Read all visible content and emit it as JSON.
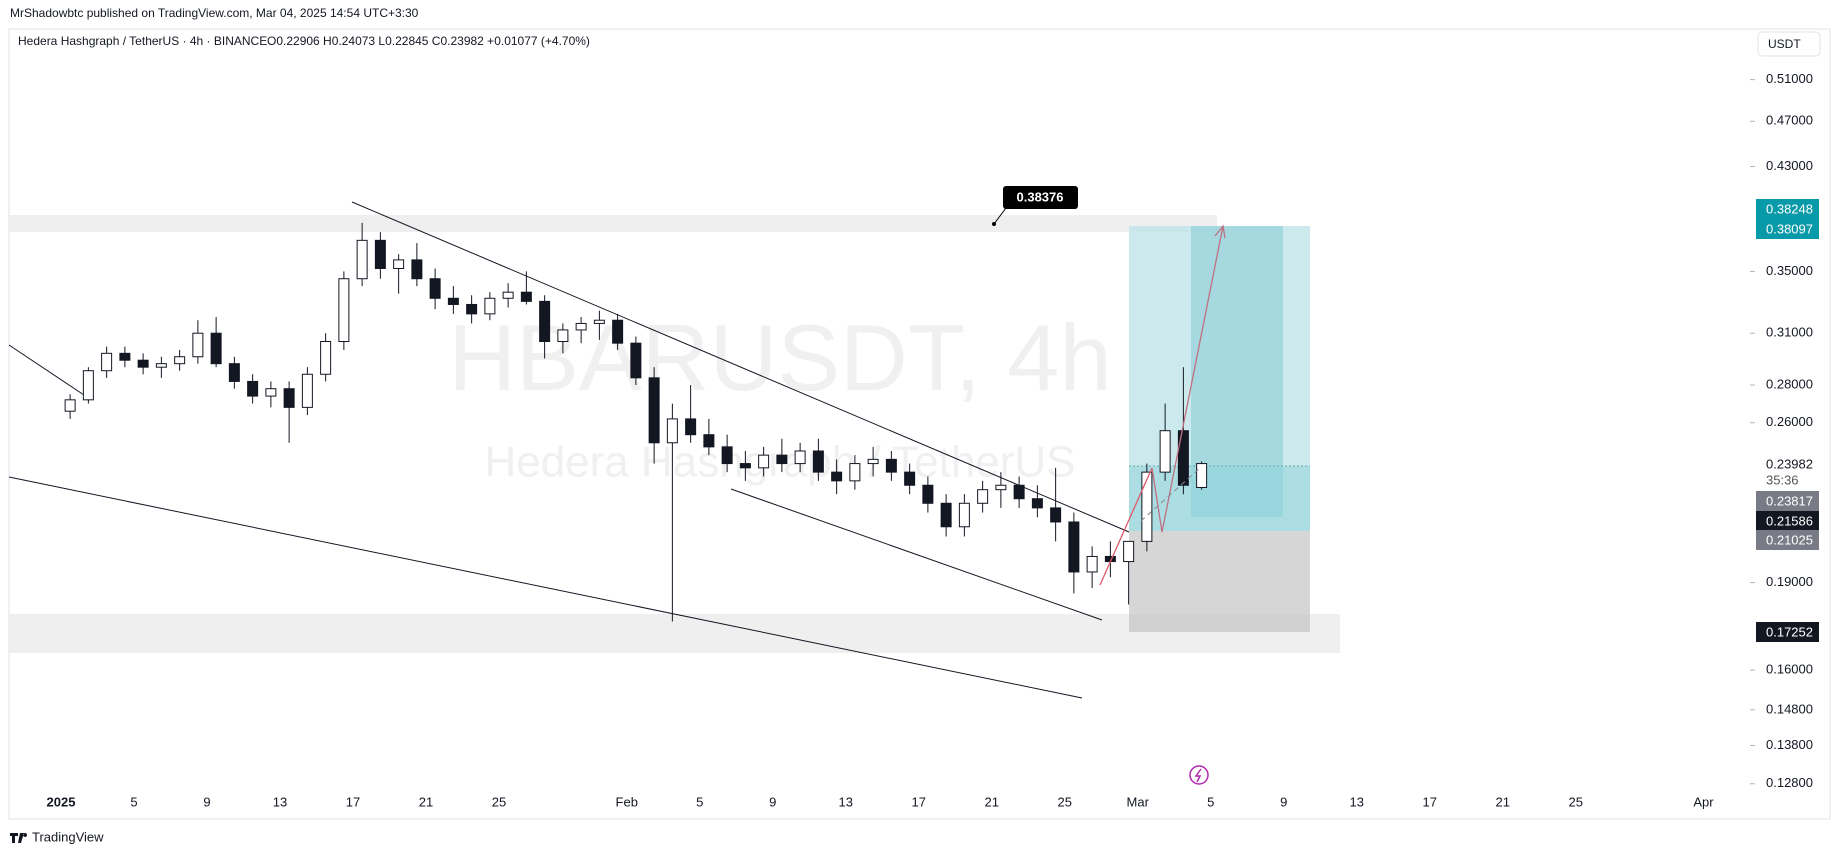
{
  "header": {
    "publisher": "MrShadowbtc published on TradingView.com, Mar 04, 2025 14:54 UTC+3:30",
    "symbol": "Hedera Hashgraph / TetherUS · 4h · BINANCE",
    "ohlc": "O0.22906 H0.24073 L0.22845 C0.23982 +0.01077 (+4.70%)"
  },
  "watermark": {
    "symbol": "HBARUSDT, 4h",
    "name": "Hedera Hashgraph / TetherUS"
  },
  "currency": "USDT",
  "footer": "TradingView",
  "callout": 0.38376,
  "chart_data": {
    "type": "candlestick",
    "log_scale": true,
    "ylim": [
      0.1257,
      0.5633
    ],
    "yticks": [
      {
        "value": 0.51,
        "label": "0.51000"
      },
      {
        "value": 0.47,
        "label": "0.47000"
      },
      {
        "value": 0.43,
        "label": "0.43000"
      },
      {
        "value": 0.35,
        "label": "0.35000"
      },
      {
        "value": 0.31,
        "label": "0.31000"
      },
      {
        "value": 0.28,
        "label": "0.28000"
      },
      {
        "value": 0.26,
        "label": "0.26000"
      },
      {
        "value": 0.19,
        "label": "0.19000"
      },
      {
        "value": 0.16,
        "label": "0.16000"
      },
      {
        "value": 0.148,
        "label": "0.14800"
      },
      {
        "value": 0.138,
        "label": "0.13800"
      },
      {
        "value": 0.128,
        "label": "0.12800"
      }
    ],
    "xticks": [
      "2025",
      "5",
      "9",
      "13",
      "17",
      "21",
      "25",
      "Feb",
      "5",
      "9",
      "13",
      "17",
      "21",
      "25",
      "Mar",
      "5",
      "9",
      "13",
      "17",
      "21",
      "25",
      "Apr"
    ],
    "price_labels": [
      0.38248,
      0.38097,
      0.23982,
      0.23817,
      0.21586,
      0.21025,
      0.17252
    ],
    "countdown": "35:36",
    "candles": [
      [
        0.266,
        0.275,
        0.262,
        0.272
      ],
      [
        0.272,
        0.29,
        0.27,
        0.288
      ],
      [
        0.288,
        0.302,
        0.284,
        0.298
      ],
      [
        0.298,
        0.302,
        0.29,
        0.294
      ],
      [
        0.294,
        0.298,
        0.286,
        0.29
      ],
      [
        0.29,
        0.296,
        0.284,
        0.292
      ],
      [
        0.292,
        0.3,
        0.288,
        0.296
      ],
      [
        0.296,
        0.318,
        0.292,
        0.31
      ],
      [
        0.31,
        0.32,
        0.29,
        0.292
      ],
      [
        0.292,
        0.296,
        0.278,
        0.282
      ],
      [
        0.282,
        0.286,
        0.27,
        0.274
      ],
      [
        0.274,
        0.282,
        0.268,
        0.278
      ],
      [
        0.278,
        0.282,
        0.25,
        0.268
      ],
      [
        0.268,
        0.29,
        0.264,
        0.286
      ],
      [
        0.286,
        0.31,
        0.282,
        0.305
      ],
      [
        0.305,
        0.35,
        0.3,
        0.345
      ],
      [
        0.345,
        0.385,
        0.34,
        0.372
      ],
      [
        0.372,
        0.378,
        0.345,
        0.352
      ],
      [
        0.352,
        0.362,
        0.335,
        0.358
      ],
      [
        0.358,
        0.37,
        0.34,
        0.345
      ],
      [
        0.345,
        0.352,
        0.325,
        0.332
      ],
      [
        0.332,
        0.34,
        0.322,
        0.328
      ],
      [
        0.328,
        0.334,
        0.316,
        0.322
      ],
      [
        0.322,
        0.336,
        0.318,
        0.332
      ],
      [
        0.332,
        0.342,
        0.326,
        0.336
      ],
      [
        0.336,
        0.35,
        0.328,
        0.33
      ],
      [
        0.33,
        0.334,
        0.295,
        0.305
      ],
      [
        0.305,
        0.316,
        0.298,
        0.312
      ],
      [
        0.312,
        0.32,
        0.304,
        0.316
      ],
      [
        0.316,
        0.324,
        0.306,
        0.318
      ],
      [
        0.318,
        0.322,
        0.3,
        0.304
      ],
      [
        0.304,
        0.308,
        0.28,
        0.284
      ],
      [
        0.284,
        0.29,
        0.24,
        0.25
      ],
      [
        0.25,
        0.27,
        0.176,
        0.262
      ],
      [
        0.262,
        0.28,
        0.25,
        0.254
      ],
      [
        0.254,
        0.262,
        0.244,
        0.248
      ],
      [
        0.248,
        0.254,
        0.236,
        0.24
      ],
      [
        0.24,
        0.246,
        0.232,
        0.238
      ],
      [
        0.238,
        0.248,
        0.234,
        0.244
      ],
      [
        0.244,
        0.252,
        0.236,
        0.24
      ],
      [
        0.24,
        0.25,
        0.236,
        0.246
      ],
      [
        0.246,
        0.252,
        0.232,
        0.236
      ],
      [
        0.236,
        0.242,
        0.226,
        0.232
      ],
      [
        0.232,
        0.244,
        0.228,
        0.24
      ],
      [
        0.24,
        0.248,
        0.234,
        0.242
      ],
      [
        0.242,
        0.246,
        0.232,
        0.236
      ],
      [
        0.236,
        0.24,
        0.226,
        0.23
      ],
      [
        0.23,
        0.234,
        0.218,
        0.222
      ],
      [
        0.222,
        0.226,
        0.208,
        0.212
      ],
      [
        0.212,
        0.226,
        0.208,
        0.222
      ],
      [
        0.222,
        0.232,
        0.218,
        0.228
      ],
      [
        0.228,
        0.236,
        0.22,
        0.23
      ],
      [
        0.23,
        0.234,
        0.22,
        0.224
      ],
      [
        0.224,
        0.23,
        0.216,
        0.22
      ],
      [
        0.22,
        0.238,
        0.206,
        0.214
      ],
      [
        0.214,
        0.218,
        0.186,
        0.194
      ],
      [
        0.194,
        0.204,
        0.188,
        0.2
      ],
      [
        0.2,
        0.206,
        0.192,
        0.198
      ],
      [
        0.198,
        0.204,
        0.182,
        0.206
      ],
      [
        0.206,
        0.24,
        0.202,
        0.236
      ],
      [
        0.236,
        0.27,
        0.232,
        0.256
      ],
      [
        0.256,
        0.29,
        0.226,
        0.23
      ],
      [
        0.229,
        0.241,
        0.228,
        0.24
      ]
    ]
  }
}
